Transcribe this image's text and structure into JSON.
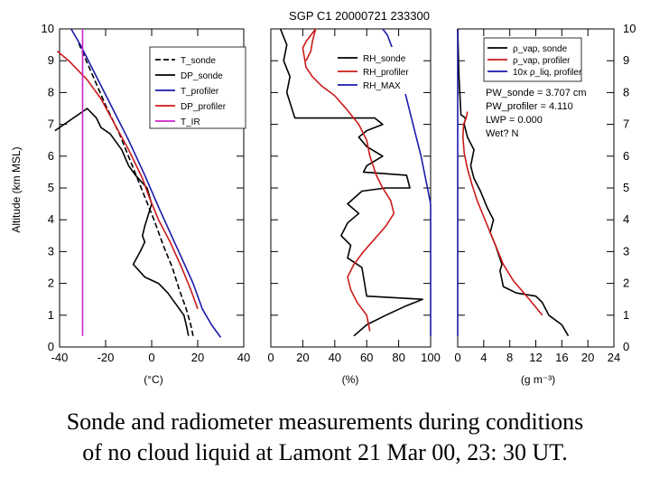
{
  "figure_title": "SGP C1 20000721 233300",
  "caption": {
    "line1": "Sonde and radiometer measurements during conditions",
    "line2": "of no cloud liquid at Lamont 21 Mar 00, 23: 30 UT."
  },
  "colors": {
    "black": "#000000",
    "red": "#cc1a1a",
    "blue": "#1a1aaa",
    "magenta": "#cc22cc"
  },
  "chart_data": [
    {
      "type": "line",
      "title": "SGP C1 20000721 233300",
      "xlabel": "(°C)",
      "ylabel": "Altitude (km MSL)",
      "xlim": [
        -40,
        40
      ],
      "ylim": [
        0,
        10
      ],
      "xticks": [
        "-40",
        "-20",
        "0",
        "20",
        "40"
      ],
      "yticks": [
        "0",
        "1",
        "2",
        "3",
        "4",
        "5",
        "6",
        "7",
        "8",
        "9",
        "10"
      ],
      "legend_position": "top-right",
      "series": [
        {
          "name": "T_sonde",
          "color": "black",
          "dash": true,
          "x": [
            18,
            17,
            15,
            12,
            9,
            5,
            1,
            -4,
            -9,
            -14,
            -20,
            -26,
            -32
          ],
          "y": [
            0.35,
            0.7,
            1.2,
            1.8,
            2.5,
            3.2,
            4.0,
            4.9,
            5.8,
            6.7,
            7.6,
            8.6,
            9.6
          ]
        },
        {
          "name": "DP_sonde",
          "color": "black",
          "dash": false,
          "x": [
            16,
            15,
            14,
            10,
            7,
            3,
            -3,
            -8,
            -5,
            -3,
            -4,
            -3,
            0,
            -2,
            -7,
            -10,
            -13,
            -18,
            -22,
            -24,
            -28,
            -40,
            -42
          ],
          "y": [
            0.35,
            0.7,
            1.0,
            1.4,
            1.7,
            2.0,
            2.2,
            2.6,
            3.0,
            3.3,
            3.5,
            3.8,
            4.5,
            5.0,
            5.4,
            5.7,
            6.2,
            6.7,
            6.9,
            7.2,
            7.5,
            6.9,
            6.8
          ]
        },
        {
          "name": "T_profiler",
          "color": "blue",
          "dash": false,
          "x": [
            30,
            26,
            22,
            18,
            13,
            8,
            3,
            -3,
            -10,
            -17,
            -24,
            -31,
            -35
          ],
          "y": [
            0.3,
            0.7,
            1.2,
            2.0,
            2.8,
            3.6,
            4.4,
            5.4,
            6.5,
            7.5,
            8.5,
            9.5,
            10
          ]
        },
        {
          "name": "DP_profiler",
          "color": "red",
          "dash": false,
          "x": [
            20,
            17,
            13,
            8,
            3,
            -1,
            -4,
            -10,
            -16,
            -22,
            -28,
            -36,
            -41
          ],
          "y": [
            1.2,
            1.8,
            2.5,
            3.3,
            4.0,
            4.7,
            5.3,
            6.2,
            7.0,
            7.8,
            8.4,
            9.0,
            9.3
          ]
        },
        {
          "name": "T_IR",
          "color": "magenta",
          "dash": false,
          "x": [
            -30,
            -30
          ],
          "y": [
            0.35,
            10
          ]
        }
      ]
    },
    {
      "type": "line",
      "xlabel": "(%)",
      "xlim": [
        0,
        100
      ],
      "ylim": [
        0,
        10
      ],
      "xticks": [
        "0",
        "20",
        "40",
        "60",
        "80",
        "100"
      ],
      "legend_position": "top-left",
      "series": [
        {
          "name": "RH_sonde",
          "color": "black",
          "dash": false,
          "x": [
            52,
            60,
            72,
            85,
            95,
            60,
            57,
            48,
            50,
            44,
            48,
            55,
            48,
            57,
            72,
            87,
            85,
            58,
            60,
            70,
            60,
            55,
            60,
            70,
            65,
            40,
            15,
            10,
            12,
            8,
            10,
            6
          ],
          "y": [
            0.35,
            0.7,
            1.0,
            1.3,
            1.5,
            1.6,
            2.5,
            2.8,
            3.2,
            3.5,
            3.9,
            4.2,
            4.5,
            4.9,
            5.0,
            5.0,
            5.4,
            5.5,
            5.7,
            6.0,
            6.3,
            6.6,
            6.8,
            7.0,
            7.2,
            7.2,
            7.2,
            8.0,
            8.5,
            9.0,
            9.5,
            10
          ]
        },
        {
          "name": "RH_profiler",
          "color": "red",
          "dash": false,
          "x": [
            62,
            60,
            54,
            50,
            48,
            52,
            58,
            65,
            72,
            77,
            75,
            70,
            66,
            62,
            60,
            55,
            47,
            40,
            32,
            26,
            22,
            21,
            20,
            22,
            25,
            28,
            26,
            25,
            22
          ],
          "y": [
            0.5,
            1.0,
            1.4,
            1.8,
            2.2,
            2.6,
            3.0,
            3.4,
            3.8,
            4.2,
            4.6,
            5.0,
            5.4,
            6.0,
            6.5,
            7.0,
            7.5,
            7.9,
            8.2,
            8.5,
            8.8,
            9.1,
            9.4,
            9.6,
            9.8,
            10.0,
            9.6,
            9.3,
            9.0
          ]
        },
        {
          "name": "RH_MAX",
          "color": "blue",
          "dash": false,
          "x": [
            100,
            100,
            98,
            94,
            89,
            84,
            79,
            73,
            70
          ],
          "y": [
            0.35,
            4.5,
            5.0,
            6.0,
            7.0,
            8.0,
            9.0,
            9.8,
            10
          ]
        }
      ]
    },
    {
      "type": "line",
      "xlabel": "(g m⁻³)",
      "xlim": [
        0,
        24
      ],
      "ylim": [
        0,
        10
      ],
      "xticks": [
        "0",
        "4",
        "8",
        "12",
        "16",
        "20",
        "24"
      ],
      "legend_position": "top-right",
      "annotations": [
        "PW_sonde = 3.707 cm",
        "PW_profiler = 4.110",
        "LWP = 0.000",
        "Wet? N"
      ],
      "series": [
        {
          "name": "ρ_vap, sonde",
          "color": "black",
          "dash": false,
          "x": [
            17,
            16,
            14,
            13,
            12,
            9,
            7,
            6.5,
            6.8,
            5.8,
            5,
            5.5,
            4.5,
            3.5,
            2.5,
            2,
            2.5,
            1.5,
            1,
            1.2,
            0.5,
            0.2,
            0
          ],
          "y": [
            0.35,
            0.7,
            1.0,
            1.4,
            1.6,
            1.7,
            1.9,
            2.4,
            2.6,
            3.2,
            3.6,
            4.0,
            4.4,
            4.9,
            5.3,
            5.7,
            6.2,
            6.6,
            7.0,
            7.2,
            7.3,
            8.5,
            10
          ]
        },
        {
          "name": "ρ_vap, profiler",
          "color": "red",
          "dash": false,
          "x": [
            13,
            11,
            8.5,
            7,
            6,
            5,
            4,
            3,
            2.2,
            1.5,
            1.0,
            0.8,
            0.9,
            1.3,
            1.5
          ],
          "y": [
            1.0,
            1.5,
            2.1,
            2.6,
            3.1,
            3.6,
            4.1,
            4.6,
            5.1,
            5.6,
            6.1,
            6.6,
            7.0,
            7.2,
            7.4
          ]
        },
        {
          "name": "10x ρ_liq, profiler",
          "color": "blue",
          "dash": false,
          "x": [
            0,
            0
          ],
          "y": [
            0.35,
            10
          ]
        }
      ]
    }
  ]
}
